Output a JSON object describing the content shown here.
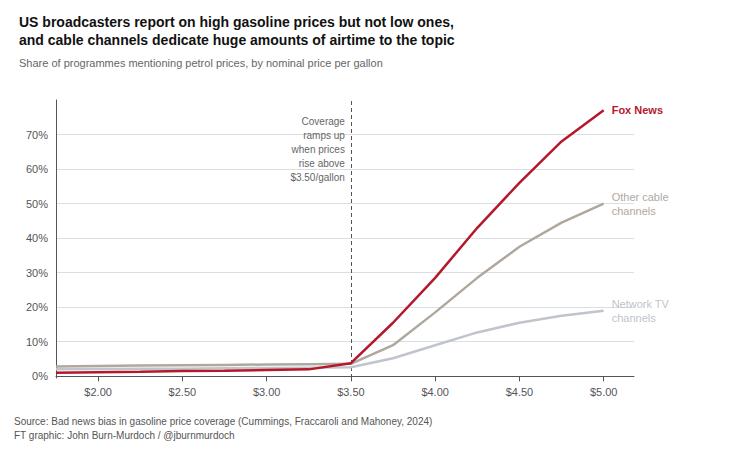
{
  "chart_data": {
    "type": "line",
    "title": "US broadcasters report on high gasoline prices but not low ones,\nand cable channels dedicate huge amounts of airtime to the topic",
    "subtitle": "Share of programmes mentioning petrol prices, by nominal price per gallon",
    "source": "Source: Bad news bias in gasoline price coverage (Cummings, Fraccaroli and Mahoney, 2024)\nFT graphic: John Burn-Murdoch / @jburnmurdoch",
    "annotations": [
      {
        "text": "Coverage\nramps up\nwhen prices\nrise above\n$3.50/gallon",
        "x": 3.5
      }
    ],
    "x": [
      1.75,
      2.0,
      2.25,
      2.5,
      2.75,
      3.0,
      3.25,
      3.5,
      3.75,
      4.0,
      4.25,
      4.5,
      4.75,
      5.0
    ],
    "series": [
      {
        "name": "Fox News",
        "color": "#b5172b",
        "values": [
          0.01,
          0.012,
          0.013,
          0.015,
          0.016,
          0.018,
          0.02,
          0.038,
          0.155,
          0.285,
          0.43,
          0.56,
          0.68,
          0.77
        ]
      },
      {
        "name": "Other cable\nchannels",
        "color": "#b0a89e",
        "values": [
          0.028,
          0.03,
          0.031,
          0.032,
          0.033,
          0.034,
          0.035,
          0.036,
          0.09,
          0.185,
          0.285,
          0.375,
          0.445,
          0.5
        ]
      },
      {
        "name": "Network TV\nchannels",
        "color": "#c0c4cc",
        "values": [
          0.02,
          0.021,
          0.022,
          0.022,
          0.023,
          0.024,
          0.025,
          0.026,
          0.052,
          0.09,
          0.127,
          0.155,
          0.175,
          0.19
        ]
      }
    ],
    "xlim": [
      1.75,
      5.18
    ],
    "ylim": [
      -0.005,
      0.8
    ],
    "xticks": [
      {
        "value": 2.0,
        "label": "$2.00"
      },
      {
        "value": 2.5,
        "label": "$2.50"
      },
      {
        "value": 3.0,
        "label": "$3.00"
      },
      {
        "value": 3.5,
        "label": "$3.50"
      },
      {
        "value": 4.0,
        "label": "$4.00"
      },
      {
        "value": 4.5,
        "label": "$4.50"
      },
      {
        "value": 5.0,
        "label": "$5.00"
      }
    ],
    "yticks": [
      {
        "value": 0.0,
        "label": "0%"
      },
      {
        "value": 0.1,
        "label": "10%"
      },
      {
        "value": 0.2,
        "label": "20%"
      },
      {
        "value": 0.3,
        "label": "30%"
      },
      {
        "value": 0.4,
        "label": "40%"
      },
      {
        "value": 0.5,
        "label": "50%"
      },
      {
        "value": 0.6,
        "label": "60%"
      },
      {
        "value": 0.7,
        "label": "70%"
      }
    ],
    "grid": true
  }
}
